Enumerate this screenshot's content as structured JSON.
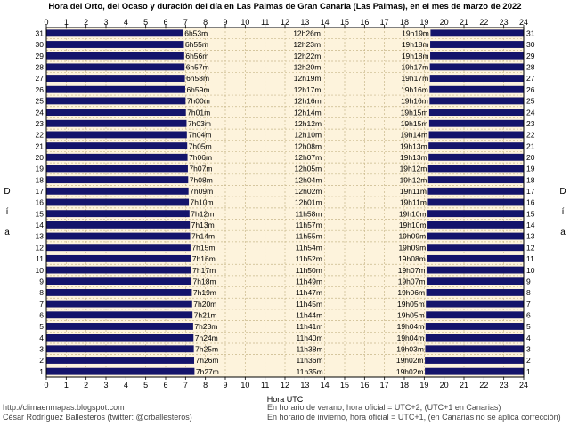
{
  "chart_data": {
    "type": "bar",
    "title": "Hora del Orto, del Ocaso y duración del día en Las Palmas de Gran Canaria (Las Palmas), en el mes de marzo de 2022",
    "xlabel": "Hora UTC",
    "ylabel": "Día",
    "xlim": [
      0,
      24
    ],
    "x_ticks": [
      "0",
      "1",
      "2",
      "3",
      "4",
      "5",
      "6",
      "7",
      "8",
      "9",
      "10",
      "11",
      "12",
      "13",
      "14",
      "15",
      "16",
      "17",
      "18",
      "19",
      "20",
      "21",
      "22",
      "23",
      "24"
    ],
    "grid": true,
    "colors": {
      "background": "#fdf3dc",
      "bar": "#14146b",
      "grid": "#c8b88a",
      "frame": "#000000",
      "text": "#000000"
    },
    "days": [
      {
        "day": "1",
        "sunrise": "7h27m",
        "duration": "11h35m",
        "sunset": "19h02m"
      },
      {
        "day": "2",
        "sunrise": "7h26m",
        "duration": "11h36m",
        "sunset": "19h02m"
      },
      {
        "day": "3",
        "sunrise": "7h25m",
        "duration": "11h38m",
        "sunset": "19h03m"
      },
      {
        "day": "4",
        "sunrise": "7h24m",
        "duration": "11h40m",
        "sunset": "19h04m"
      },
      {
        "day": "5",
        "sunrise": "7h23m",
        "duration": "11h41m",
        "sunset": "19h04m"
      },
      {
        "day": "6",
        "sunrise": "7h21m",
        "duration": "11h44m",
        "sunset": "19h05m"
      },
      {
        "day": "7",
        "sunrise": "7h20m",
        "duration": "11h45m",
        "sunset": "19h05m"
      },
      {
        "day": "8",
        "sunrise": "7h19m",
        "duration": "11h47m",
        "sunset": "19h06m"
      },
      {
        "day": "9",
        "sunrise": "7h18m",
        "duration": "11h49m",
        "sunset": "19h07m"
      },
      {
        "day": "10",
        "sunrise": "7h17m",
        "duration": "11h50m",
        "sunset": "19h07m"
      },
      {
        "day": "11",
        "sunrise": "7h16m",
        "duration": "11h52m",
        "sunset": "19h08m"
      },
      {
        "day": "12",
        "sunrise": "7h15m",
        "duration": "11h54m",
        "sunset": "19h09m"
      },
      {
        "day": "13",
        "sunrise": "7h14m",
        "duration": "11h55m",
        "sunset": "19h09m"
      },
      {
        "day": "14",
        "sunrise": "7h13m",
        "duration": "11h57m",
        "sunset": "19h10m"
      },
      {
        "day": "15",
        "sunrise": "7h12m",
        "duration": "11h58m",
        "sunset": "19h10m"
      },
      {
        "day": "16",
        "sunrise": "7h10m",
        "duration": "12h01m",
        "sunset": "19h11m"
      },
      {
        "day": "17",
        "sunrise": "7h09m",
        "duration": "12h02m",
        "sunset": "19h11m"
      },
      {
        "day": "18",
        "sunrise": "7h08m",
        "duration": "12h04m",
        "sunset": "19h12m"
      },
      {
        "day": "19",
        "sunrise": "7h07m",
        "duration": "12h05m",
        "sunset": "19h12m"
      },
      {
        "day": "20",
        "sunrise": "7h06m",
        "duration": "12h07m",
        "sunset": "19h13m"
      },
      {
        "day": "21",
        "sunrise": "7h05m",
        "duration": "12h08m",
        "sunset": "19h13m"
      },
      {
        "day": "22",
        "sunrise": "7h04m",
        "duration": "12h10m",
        "sunset": "19h14m"
      },
      {
        "day": "23",
        "sunrise": "7h03m",
        "duration": "12h12m",
        "sunset": "19h15m"
      },
      {
        "day": "24",
        "sunrise": "7h01m",
        "duration": "12h14m",
        "sunset": "19h15m"
      },
      {
        "day": "25",
        "sunrise": "7h00m",
        "duration": "12h16m",
        "sunset": "19h16m"
      },
      {
        "day": "26",
        "sunrise": "6h59m",
        "duration": "12h17m",
        "sunset": "19h16m"
      },
      {
        "day": "27",
        "sunrise": "6h58m",
        "duration": "12h19m",
        "sunset": "19h17m"
      },
      {
        "day": "28",
        "sunrise": "6h57m",
        "duration": "12h20m",
        "sunset": "19h17m"
      },
      {
        "day": "29",
        "sunrise": "6h56m",
        "duration": "12h22m",
        "sunset": "19h18m"
      },
      {
        "day": "30",
        "sunrise": "6h55m",
        "duration": "12h23m",
        "sunset": "19h18m"
      },
      {
        "day": "31",
        "sunrise": "6h53m",
        "duration": "12h26m",
        "sunset": "19h19m"
      }
    ]
  },
  "footer": {
    "blog": "http://climaenmapas.blogspot.com",
    "author": "César Rodríguez Ballesteros (twitter: @crballesteros)",
    "note_summer": "En horario de verano, hora oficial = UTC+2, (UTC+1 en Canarias)",
    "note_winter": "En horario de invierno, hora oficial = UTC+1, (en Canarias no se aplica corrección)"
  }
}
